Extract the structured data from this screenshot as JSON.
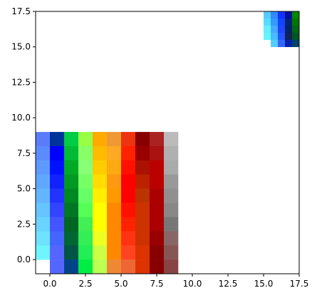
{
  "chart_data": {
    "type": "image",
    "xlim": [
      -1,
      17.5
    ],
    "ylim": [
      -1,
      17.5
    ],
    "xticks": [
      {
        "value": 0,
        "label": "0.0"
      },
      2.5,
      {
        "value": 5,
        "label": "5.0"
      },
      7.5,
      {
        "value": 10,
        "label": "10.0"
      },
      12.5,
      {
        "value": 15,
        "label": "15.0"
      },
      17.5
    ],
    "yticks": [
      {
        "value": 0,
        "label": "0.0"
      },
      2.5,
      {
        "value": 5,
        "label": "5.0"
      },
      7.5,
      {
        "value": 10,
        "label": "10.0"
      },
      12.5,
      {
        "value": 15,
        "label": "15.0"
      },
      17.5
    ],
    "images": [
      {
        "extent": [
          -1,
          9,
          -1,
          9
        ],
        "colors": [
          [
            "#5a7cfa",
            "#003399",
            "#00cc44",
            "#99ff44",
            "#ffaa00",
            "#ee9933",
            "#ee3311",
            "#880000",
            "#aa2222",
            "#bbbbbb"
          ],
          [
            "#5b8cff",
            "#0000ff",
            "#00bb33",
            "#88ff66",
            "#ffbb00",
            "#ffaa22",
            "#ff2200",
            "#990000",
            "#aa1111",
            "#b0b0b0"
          ],
          [
            "#5e99ff",
            "#0011ff",
            "#00aa22",
            "#88ff77",
            "#ffcc00",
            "#ffaa11",
            "#ff1100",
            "#aa1100",
            "#bb0000",
            "#aaaaaa"
          ],
          [
            "#60a8ff",
            "#1122ff",
            "#009922",
            "#77ff66",
            "#ffdd00",
            "#ff9911",
            "#ff0000",
            "#bb2200",
            "#bb0000",
            "#999999"
          ],
          [
            "#63b5ff",
            "#2233ff",
            "#008822",
            "#66ff66",
            "#ffee00",
            "#ff9900",
            "#ff0000",
            "#bb3300",
            "#aa0000",
            "#909090"
          ],
          [
            "#66c4ff",
            "#3344ff",
            "#007722",
            "#55ff55",
            "#ffff00",
            "#ff8800",
            "#ff1100",
            "#cc3300",
            "#aa0000",
            "#888888"
          ],
          [
            "#6ad3ff",
            "#4455ff",
            "#006622",
            "#44ee55",
            "#ffff00",
            "#ff8800",
            "#ff2200",
            "#cc3300",
            "#aa0000",
            "#777777"
          ],
          [
            "#6ee2ff",
            "#4466ff",
            "#006633",
            "#33ee55",
            "#eeff22",
            "#ff8800",
            "#ff3311",
            "#cc3300",
            "#990000",
            "#886666"
          ],
          [
            "#6ff5ff",
            "#5566ff",
            "#005544",
            "#22ee55",
            "#ccff44",
            "#ff8800",
            "#ff4422",
            "#dd3300",
            "#880000",
            "#885555"
          ],
          [
            null,
            "#5566ff",
            "#004488",
            "#00ee44",
            "#bbff55",
            "#ee8833",
            "#ee6633",
            "#dd3300",
            "#880000",
            "#884444"
          ]
        ]
      },
      {
        "extent": [
          15,
          17.5,
          15,
          17.5
        ],
        "colors": [
          [
            "#55ccff",
            "#3388ff",
            "#1133ff",
            "#001199",
            "#008800"
          ],
          [
            "#55ddff",
            "#3399ff",
            "#1144ff",
            "#002277",
            "#007700"
          ],
          [
            "#66eeff",
            "#44aaff",
            "#2244ff",
            "#002266",
            "#006611"
          ],
          [
            "#66f5ff",
            "#44bbff",
            "#2255ff",
            "#112255",
            "#005522"
          ],
          [
            null,
            "#55ccff",
            "#3366ff",
            "#0022aa",
            "#004466"
          ]
        ]
      }
    ]
  }
}
